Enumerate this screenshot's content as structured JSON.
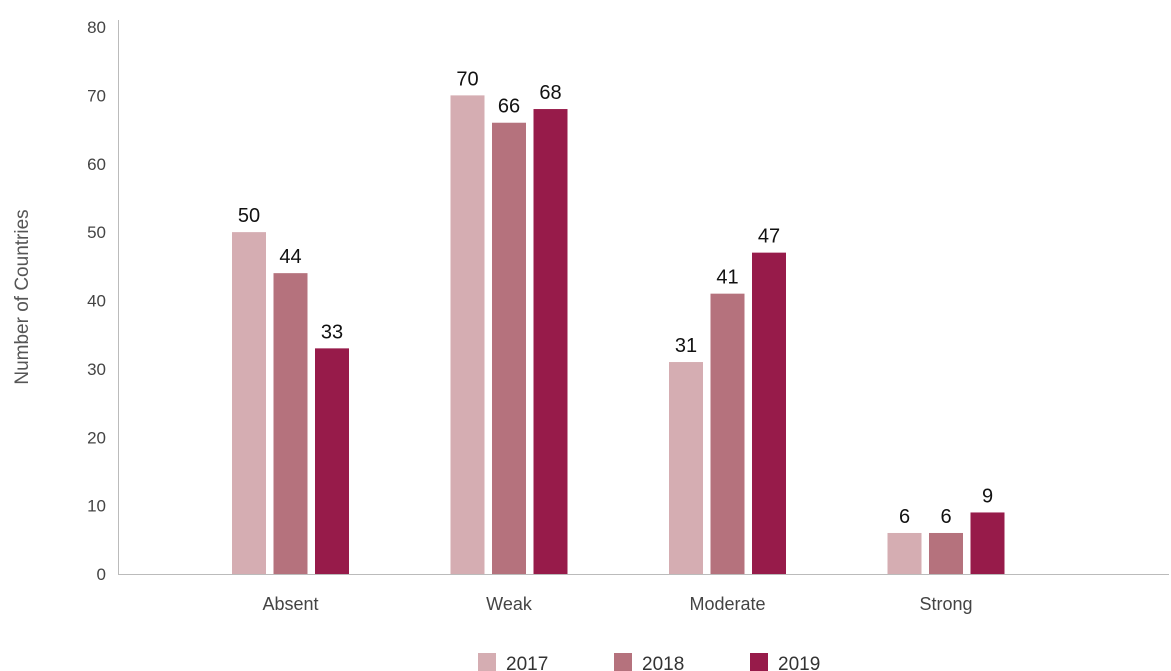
{
  "chart_data": {
    "type": "bar",
    "title": "",
    "xlabel": "",
    "ylabel": "Number of Countries",
    "ylim": [
      0,
      80
    ],
    "yticks": [
      0,
      10,
      20,
      30,
      40,
      50,
      60,
      70,
      80
    ],
    "grid": false,
    "legend_position": "bottom",
    "categories": [
      "Absent",
      "Weak",
      "Moderate",
      "Strong"
    ],
    "series": [
      {
        "name": "2017",
        "color": "#d5adb2",
        "values": [
          50,
          70,
          31,
          6
        ]
      },
      {
        "name": "2018",
        "color": "#b5727d",
        "values": [
          44,
          66,
          41,
          6
        ]
      },
      {
        "name": "2019",
        "color": "#971b4a",
        "values": [
          33,
          68,
          47,
          9
        ]
      }
    ]
  }
}
